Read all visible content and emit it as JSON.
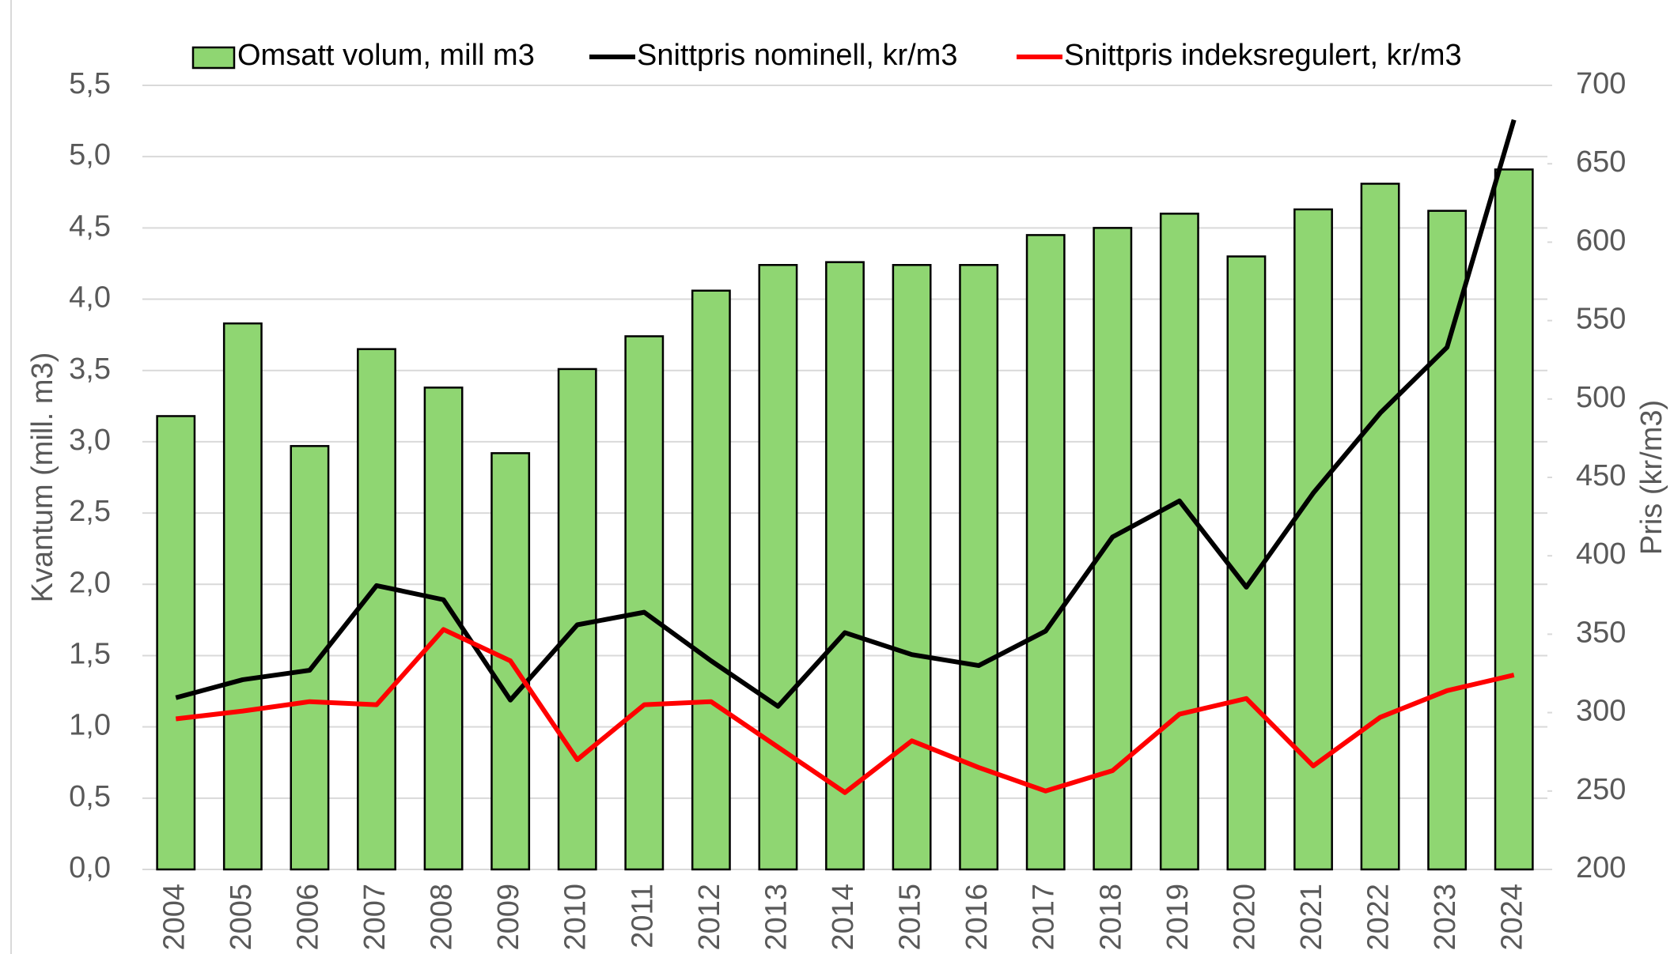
{
  "chart_data": {
    "type": "bar-line",
    "categories": [
      "2004",
      "2005",
      "2006",
      "2007",
      "2008",
      "2009",
      "2010",
      "2011",
      "2012",
      "2013",
      "2014",
      "2015",
      "2016",
      "2017",
      "2018",
      "2019",
      "2020",
      "2021",
      "2022",
      "2023",
      "2024"
    ],
    "series": [
      {
        "name": "Omsatt volum, mill m3",
        "type": "bar",
        "color": "#8fd672",
        "values": [
          3.18,
          3.83,
          2.97,
          3.65,
          3.38,
          2.92,
          3.51,
          3.74,
          4.06,
          4.24,
          4.26,
          4.24,
          4.24,
          4.45,
          4.5,
          4.6,
          4.3,
          4.63,
          4.81,
          4.62,
          4.91
        ]
      },
      {
        "name": "Snittpris nominell, kr/m3",
        "type": "line",
        "axis": "y2",
        "color": "#000000",
        "values": [
          309.5,
          321,
          327,
          381,
          372,
          308,
          356,
          364,
          333,
          304,
          351,
          337,
          330,
          352,
          412,
          435,
          380,
          440,
          491,
          533,
          678
        ]
      },
      {
        "name": "Snittpris indeksregulert, kr/m3",
        "type": "line",
        "axis": "y2",
        "color": "#ff0000",
        "values": [
          296,
          301,
          307,
          305,
          353,
          333,
          270,
          305,
          307,
          278,
          249,
          282,
          265,
          250,
          263,
          299,
          309,
          266,
          297,
          314,
          324
        ]
      }
    ],
    "y_label": "Kvantum (mill. m3)",
    "y2_label": "Pris (kr/m3)",
    "ylim": [
      0,
      5.5
    ],
    "yticks": [
      {
        "value": 0,
        "label": "0,0"
      },
      {
        "value": 0.5,
        "label": "0,5"
      },
      {
        "value": 1,
        "label": "1,0"
      },
      {
        "value": 1.5,
        "label": "1,5"
      },
      {
        "value": 2,
        "label": "2,0"
      },
      {
        "value": 2.5,
        "label": "2,5"
      },
      {
        "value": 3,
        "label": "3,0"
      },
      {
        "value": 3.5,
        "label": "3,5"
      },
      {
        "value": 4,
        "label": "4,0"
      },
      {
        "value": 4.5,
        "label": "4,5"
      },
      {
        "value": 5,
        "label": "5,0"
      },
      {
        "value": 5.5,
        "label": "5,5"
      }
    ],
    "y2lim": [
      200,
      700
    ],
    "y2ticks": [
      200,
      250,
      300,
      350,
      400,
      450,
      500,
      550,
      600,
      650,
      700
    ],
    "grid": true,
    "legend": "top"
  }
}
